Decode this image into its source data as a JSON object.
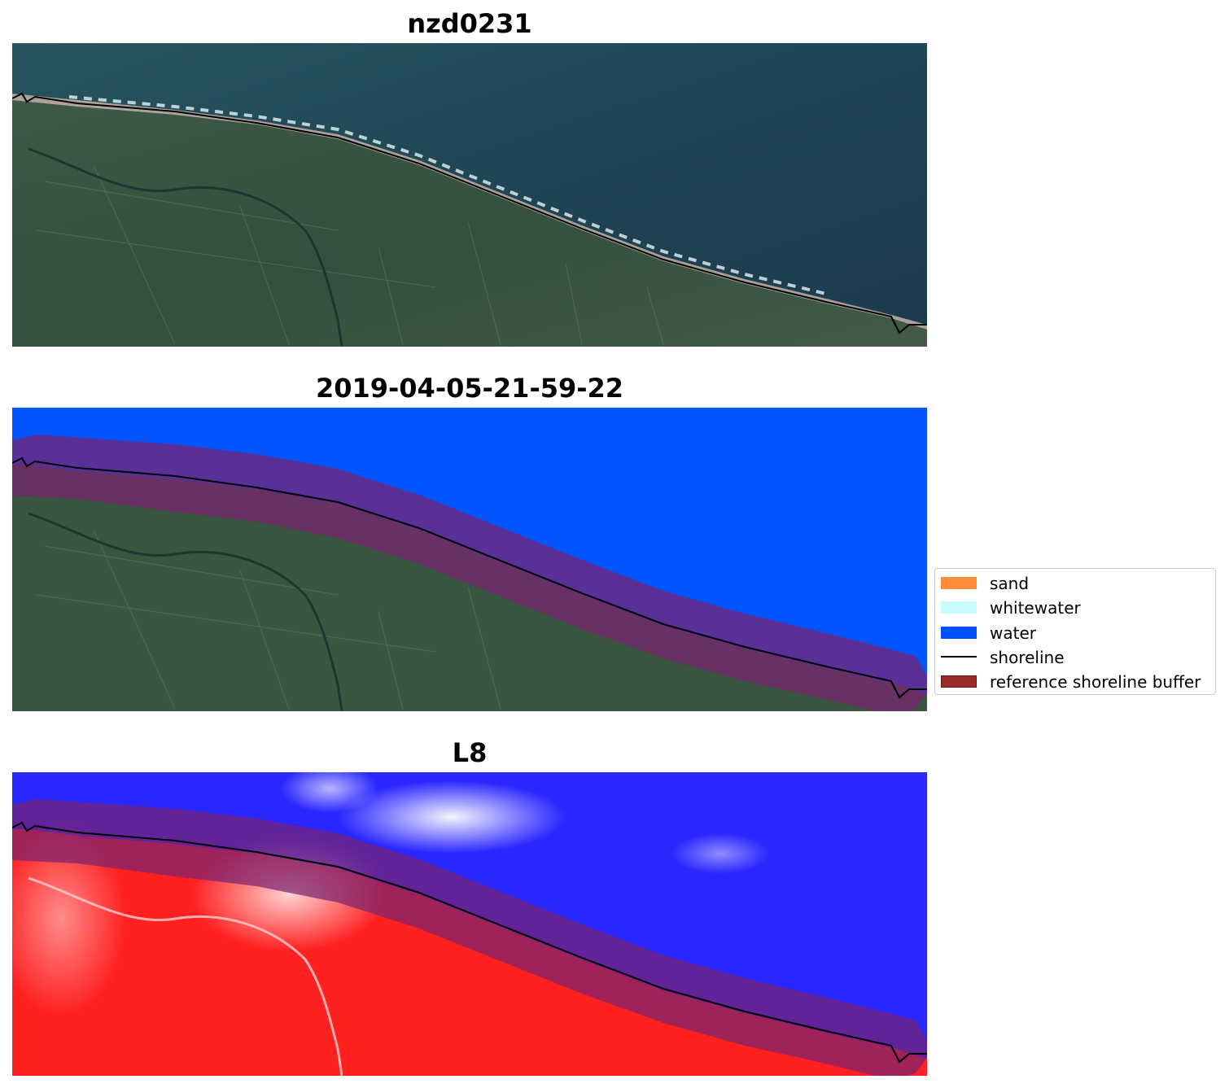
{
  "panels": [
    {
      "title": "nzd0231"
    },
    {
      "title": "2019-04-05-21-59-22"
    },
    {
      "title": "L8"
    }
  ],
  "legend": {
    "items": [
      {
        "label": "sand",
        "color": "#ff8c3a",
        "kind": "patch"
      },
      {
        "label": "whitewater",
        "color": "#c8fbfb",
        "kind": "patch"
      },
      {
        "label": "water",
        "color": "#0051ff",
        "kind": "patch"
      },
      {
        "label": "shoreline",
        "color": "#000000",
        "kind": "line"
      },
      {
        "label": "reference shoreline buffer",
        "color": "#9b2a2a",
        "kind": "patch"
      }
    ]
  },
  "colors": {
    "sea_rgb": "#1f4a5a",
    "land_rgb": "#3a5540",
    "sand_rgb": "#c9b8a8",
    "water_class": "#0055ff",
    "buffer_overlay": "#8a2a5a",
    "mndwi_water": "#2a26ff",
    "mndwi_land": "#ff2020",
    "shoreline": "#000000"
  }
}
